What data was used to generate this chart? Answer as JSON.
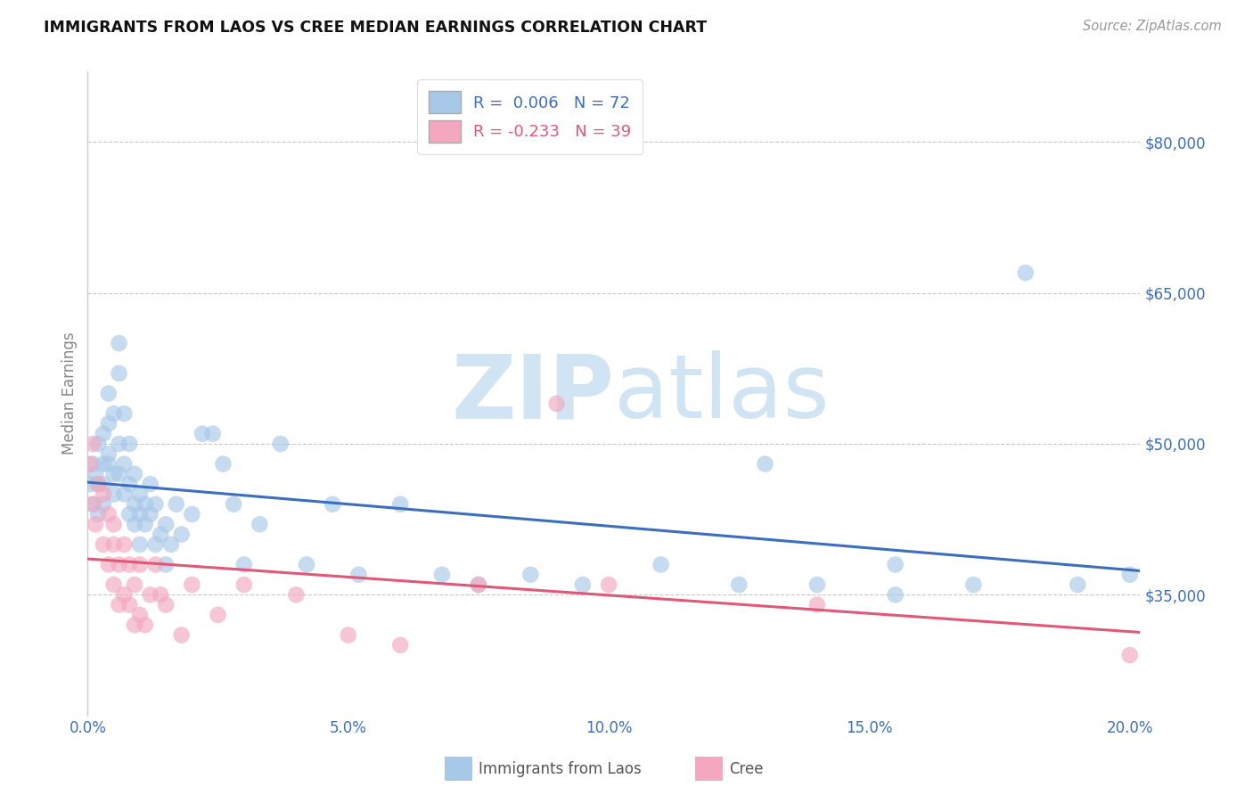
{
  "title": "IMMIGRANTS FROM LAOS VS CREE MEDIAN EARNINGS CORRELATION CHART",
  "source": "Source: ZipAtlas.com",
  "ylabel": "Median Earnings",
  "xlim": [
    0.0,
    0.202
  ],
  "ylim": [
    23000,
    87000
  ],
  "yticks": [
    35000,
    50000,
    65000,
    80000
  ],
  "xticks": [
    0.0,
    0.05,
    0.1,
    0.15,
    0.2
  ],
  "xtick_labels": [
    "0.0%",
    "5.0%",
    "10.0%",
    "15.0%",
    "20.0%"
  ],
  "ytick_labels": [
    "$35,000",
    "$50,000",
    "$65,000",
    "$80,000"
  ],
  "blue_R": 0.006,
  "blue_N": 72,
  "pink_R": -0.233,
  "pink_N": 39,
  "blue_color": "#A8C8E8",
  "pink_color": "#F4A8C0",
  "blue_line_color": "#3B6FBE",
  "pink_line_color": "#E05878",
  "watermark_color": "#D0E4F4",
  "legend_blue_label": "Immigrants from Laos",
  "legend_pink_label": "Cree",
  "blue_x": [
    0.0005,
    0.001,
    0.001,
    0.0015,
    0.002,
    0.002,
    0.002,
    0.003,
    0.003,
    0.003,
    0.003,
    0.004,
    0.004,
    0.004,
    0.004,
    0.005,
    0.005,
    0.005,
    0.006,
    0.006,
    0.006,
    0.006,
    0.007,
    0.007,
    0.007,
    0.008,
    0.008,
    0.008,
    0.009,
    0.009,
    0.009,
    0.01,
    0.01,
    0.01,
    0.011,
    0.011,
    0.012,
    0.012,
    0.013,
    0.013,
    0.014,
    0.015,
    0.015,
    0.016,
    0.017,
    0.018,
    0.02,
    0.022,
    0.024,
    0.026,
    0.028,
    0.03,
    0.033,
    0.037,
    0.042,
    0.047,
    0.052,
    0.06,
    0.068,
    0.075,
    0.085,
    0.095,
    0.11,
    0.125,
    0.14,
    0.155,
    0.17,
    0.19,
    0.2,
    0.13,
    0.155,
    0.18
  ],
  "blue_y": [
    46000,
    48000,
    44000,
    47000,
    50000,
    43000,
    46000,
    48000,
    51000,
    44000,
    46000,
    52000,
    48000,
    55000,
    49000,
    53000,
    47000,
    45000,
    50000,
    47000,
    60000,
    57000,
    53000,
    48000,
    45000,
    50000,
    46000,
    43000,
    47000,
    44000,
    42000,
    45000,
    43000,
    40000,
    44000,
    42000,
    46000,
    43000,
    40000,
    44000,
    41000,
    38000,
    42000,
    40000,
    44000,
    41000,
    43000,
    51000,
    51000,
    48000,
    44000,
    38000,
    42000,
    50000,
    38000,
    44000,
    37000,
    44000,
    37000,
    36000,
    37000,
    36000,
    38000,
    36000,
    36000,
    38000,
    36000,
    36000,
    37000,
    48000,
    35000,
    67000
  ],
  "pink_x": [
    0.0005,
    0.001,
    0.001,
    0.0015,
    0.002,
    0.003,
    0.003,
    0.004,
    0.004,
    0.005,
    0.005,
    0.005,
    0.006,
    0.006,
    0.007,
    0.007,
    0.008,
    0.008,
    0.009,
    0.009,
    0.01,
    0.01,
    0.011,
    0.012,
    0.013,
    0.014,
    0.015,
    0.018,
    0.02,
    0.025,
    0.03,
    0.04,
    0.05,
    0.06,
    0.075,
    0.09,
    0.1,
    0.14,
    0.2
  ],
  "pink_y": [
    48000,
    50000,
    44000,
    42000,
    46000,
    40000,
    45000,
    38000,
    43000,
    40000,
    36000,
    42000,
    34000,
    38000,
    40000,
    35000,
    38000,
    34000,
    36000,
    32000,
    38000,
    33000,
    32000,
    35000,
    38000,
    35000,
    34000,
    31000,
    36000,
    33000,
    36000,
    35000,
    31000,
    30000,
    36000,
    54000,
    36000,
    34000,
    29000
  ]
}
